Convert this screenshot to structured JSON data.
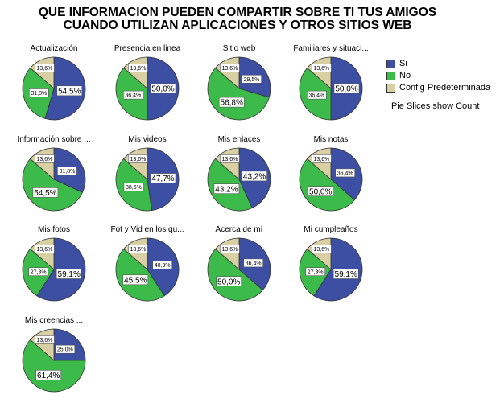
{
  "title": {
    "line1": "QUE INFORMACION PUEDEN COMPARTIR SOBRE TI TUS AMIGOS",
    "line2": "CUANDO UTILIZAN APLICACIONES Y OTROS SITIOS WEB"
  },
  "legend": {
    "items": [
      {
        "label": "Si",
        "color": "#3c4fa3"
      },
      {
        "label": "No",
        "color": "#3cba4a"
      },
      {
        "label": "Config Predeterminada",
        "color": "#d8cfa3"
      }
    ],
    "note": "Pie Slices show Count",
    "placement": "right"
  },
  "chart_data": {
    "type": "pie",
    "categories": [
      "Si",
      "No",
      "Config Predeterminada"
    ],
    "colors": [
      "#3c4fa3",
      "#3cba4a",
      "#d8cfa3"
    ],
    "pies": [
      {
        "title": "Actualización",
        "values": [
          54.5,
          31.8,
          13.6
        ],
        "labels": [
          "54,5%",
          "31,8%",
          "13,6%"
        ]
      },
      {
        "title": "Presencia en linea",
        "values": [
          50.0,
          36.4,
          13.6
        ],
        "labels": [
          "50,0%",
          "36,4%",
          "13,6%"
        ]
      },
      {
        "title": "Sitio web",
        "values": [
          29.5,
          56.8,
          13.6
        ],
        "labels": [
          "29,5%",
          "56,8%",
          "13,6%"
        ]
      },
      {
        "title": "Familiares y situaci...",
        "values": [
          50.0,
          36.4,
          13.6
        ],
        "labels": [
          "50,0%",
          "36,4%",
          "13,6%"
        ]
      },
      {
        "title": "Información sobre ...",
        "values": [
          31.8,
          54.5,
          13.6
        ],
        "labels": [
          "31,8%",
          "54,5%",
          "13,6%"
        ]
      },
      {
        "title": "Mis videos",
        "values": [
          47.7,
          38.6,
          13.6
        ],
        "labels": [
          "47,7%",
          "38,6%",
          "13,6%"
        ]
      },
      {
        "title": "Mis enlaces",
        "values": [
          43.2,
          43.2,
          13.6
        ],
        "labels": [
          "43,2%",
          "43,2%",
          "13,6%"
        ]
      },
      {
        "title": "Mis notas",
        "values": [
          36.4,
          50.0,
          13.6
        ],
        "labels": [
          "36,4%",
          "50,0%",
          "13,6%"
        ]
      },
      {
        "title": "Mis fotos",
        "values": [
          59.1,
          27.3,
          13.6
        ],
        "labels": [
          "59,1%",
          "27,3%",
          "13,6%"
        ]
      },
      {
        "title": "Fot y Vid en los qu...",
        "values": [
          40.9,
          45.5,
          13.6
        ],
        "labels": [
          "40,9%",
          "45,5%",
          "13,6%"
        ]
      },
      {
        "title": "Acerca de mí",
        "values": [
          36.4,
          50.0,
          13.6
        ],
        "labels": [
          "36,4%",
          "50,0%",
          "13,6%"
        ]
      },
      {
        "title": "Mi cumpleaños",
        "values": [
          59.1,
          27.3,
          13.6
        ],
        "labels": [
          "59,1%",
          "27,3%",
          "13,6%"
        ]
      },
      {
        "title": "Mis creencias ...",
        "values": [
          25.0,
          61.4,
          13.6
        ],
        "labels": [
          "25,0%",
          "61,4%",
          "13,6%"
        ]
      }
    ]
  }
}
